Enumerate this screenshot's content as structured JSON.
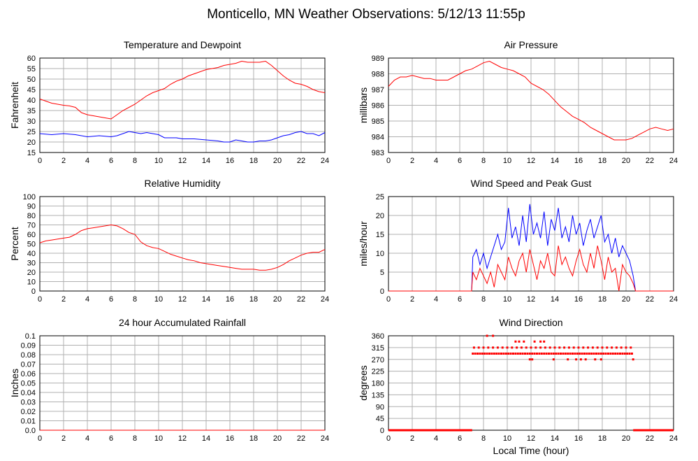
{
  "page": {
    "title": "Monticello, MN Weather Observations: 5/12/13 11:55p",
    "xlabel": "Local Time (hour)"
  },
  "colors": {
    "primary": "#ff0000",
    "secondary": "#0000ff",
    "grid": "#b0b0b0",
    "axis": "#000000"
  },
  "chart_data": [
    {
      "id": "temp",
      "type": "line",
      "title": "Temperature and Dewpoint",
      "ylabel": "Fahrenheit",
      "xlim": [
        0,
        24
      ],
      "ylim": [
        15,
        60
      ],
      "x_ticks": [
        0,
        2,
        4,
        6,
        8,
        10,
        12,
        14,
        16,
        18,
        20,
        22,
        24
      ],
      "y_ticks": [
        15,
        20,
        25,
        30,
        35,
        40,
        45,
        50,
        55,
        60
      ],
      "y_tick_labels": [
        "15",
        "20",
        "25",
        "30",
        "35",
        "40",
        "45",
        "50",
        "55",
        "60"
      ],
      "grid": true,
      "series": [
        {
          "color": "#ff0000",
          "x": [
            0,
            0.5,
            1,
            1.5,
            2,
            2.5,
            3,
            3.5,
            4,
            4.5,
            5,
            5.5,
            6,
            6.5,
            7,
            7.5,
            8,
            8.5,
            9,
            9.5,
            10,
            10.5,
            11,
            11.5,
            12,
            12.5,
            13,
            13.5,
            14,
            14.5,
            15,
            15.5,
            16,
            16.5,
            17,
            17.5,
            18,
            18.5,
            19,
            19.5,
            20,
            20.5,
            21,
            21.5,
            22,
            22.5,
            23,
            23.5,
            24
          ],
          "values": [
            40.5,
            39.5,
            38.5,
            38,
            37.5,
            37.2,
            36.5,
            34,
            33,
            32.5,
            32,
            31.5,
            31,
            33,
            35,
            36.5,
            38,
            40,
            42,
            43.5,
            44.5,
            45.5,
            47.5,
            49,
            50,
            51.5,
            52.5,
            53.5,
            54.5,
            55,
            55.5,
            56.5,
            57,
            57.5,
            58.5,
            58,
            58,
            58,
            58.5,
            56.5,
            54,
            51.5,
            49.5,
            48,
            47.5,
            46.5,
            45,
            44,
            43.5
          ]
        },
        {
          "color": "#0000ff",
          "x": [
            0,
            1,
            2,
            3,
            4,
            5,
            6,
            6.5,
            7,
            7.5,
            8,
            8.5,
            9,
            9.5,
            10,
            10.5,
            11,
            11.5,
            12,
            13,
            14,
            15,
            15.5,
            16,
            16.5,
            17,
            17.5,
            18,
            18.5,
            19,
            19.5,
            20,
            20.5,
            21,
            21.5,
            22,
            22.5,
            23,
            23.5,
            24
          ],
          "values": [
            24,
            23.5,
            24,
            23.5,
            22.5,
            23,
            22.5,
            23,
            24,
            25,
            24.5,
            24,
            24.5,
            24,
            23.5,
            22,
            22,
            22,
            21.5,
            21.5,
            21,
            20.5,
            20,
            20,
            21,
            20.5,
            20,
            20,
            20.5,
            20.5,
            21,
            22,
            23,
            23.5,
            24.5,
            25,
            24,
            24,
            23,
            24.5
          ]
        }
      ]
    },
    {
      "id": "pressure",
      "type": "line",
      "title": "Air Pressure",
      "ylabel": "millibars",
      "xlim": [
        0,
        24
      ],
      "ylim": [
        983,
        989
      ],
      "x_ticks": [
        0,
        2,
        4,
        6,
        8,
        10,
        12,
        14,
        16,
        18,
        20,
        22,
        24
      ],
      "y_ticks": [
        983,
        984,
        985,
        986,
        987,
        988,
        989
      ],
      "y_tick_labels": [
        "983",
        "984",
        "985",
        "986",
        "987",
        "988",
        "989"
      ],
      "grid": true,
      "series": [
        {
          "color": "#ff0000",
          "x": [
            0,
            0.5,
            1,
            1.5,
            2,
            2.5,
            3,
            3.5,
            4,
            4.5,
            5,
            5.5,
            6,
            6.5,
            7,
            7.5,
            8,
            8.5,
            9,
            9.5,
            10,
            10.5,
            11,
            11.5,
            12,
            12.5,
            13,
            13.5,
            14,
            14.5,
            15,
            15.5,
            16,
            16.5,
            17,
            17.5,
            18,
            18.5,
            19,
            19.5,
            20,
            20.5,
            21,
            21.5,
            22,
            22.5,
            23,
            23.5,
            24
          ],
          "values": [
            987.2,
            987.6,
            987.8,
            987.8,
            987.9,
            987.8,
            987.7,
            987.7,
            987.6,
            987.6,
            987.6,
            987.8,
            988.0,
            988.2,
            988.3,
            988.5,
            988.7,
            988.8,
            988.6,
            988.4,
            988.3,
            988.2,
            988.0,
            987.8,
            987.4,
            987.2,
            987.0,
            986.7,
            986.3,
            985.9,
            985.6,
            985.3,
            985.1,
            984.9,
            984.6,
            984.4,
            984.2,
            984.0,
            983.8,
            983.8,
            983.8,
            983.9,
            984.1,
            984.3,
            984.5,
            984.6,
            984.5,
            984.4,
            984.5
          ]
        }
      ]
    },
    {
      "id": "humidity",
      "type": "line",
      "title": "Relative Humidity",
      "ylabel": "Percent",
      "xlim": [
        0,
        24
      ],
      "ylim": [
        0,
        100
      ],
      "x_ticks": [
        0,
        2,
        4,
        6,
        8,
        10,
        12,
        14,
        16,
        18,
        20,
        22,
        24
      ],
      "y_ticks": [
        0,
        10,
        20,
        30,
        40,
        50,
        60,
        70,
        80,
        90,
        100
      ],
      "y_tick_labels": [
        "0",
        "10",
        "20",
        "30",
        "40",
        "50",
        "60",
        "70",
        "80",
        "90",
        "100"
      ],
      "grid": true,
      "series": [
        {
          "color": "#ff0000",
          "x": [
            0,
            0.5,
            1,
            1.5,
            2,
            2.5,
            3,
            3.5,
            4,
            4.5,
            5,
            5.5,
            6,
            6.5,
            7,
            7.5,
            8,
            8.5,
            9,
            9.5,
            10,
            10.5,
            11,
            11.5,
            12,
            12.5,
            13,
            13.5,
            14,
            14.5,
            15,
            15.5,
            16,
            16.5,
            17,
            17.5,
            18,
            18.5,
            19,
            19.5,
            20,
            20.5,
            21,
            21.5,
            22,
            22.5,
            23,
            23.5,
            24
          ],
          "values": [
            51,
            53,
            54,
            55,
            56,
            57,
            60,
            64,
            66,
            67,
            68,
            69,
            70,
            69,
            66,
            62,
            60,
            52,
            48,
            46,
            45,
            42,
            39,
            37,
            35,
            33,
            32,
            30,
            29,
            28,
            27,
            26,
            25,
            24,
            23,
            23,
            23,
            22,
            22,
            23,
            25,
            28,
            32,
            35,
            38,
            40,
            41,
            41,
            44
          ]
        }
      ]
    },
    {
      "id": "wind",
      "type": "line",
      "title": "Wind Speed and Peak Gust",
      "ylabel": "miles/hour",
      "xlim": [
        0,
        24
      ],
      "ylim": [
        0,
        25
      ],
      "x_ticks": [
        0,
        2,
        4,
        6,
        8,
        10,
        12,
        14,
        16,
        18,
        20,
        22,
        24
      ],
      "y_ticks": [
        0,
        5,
        10,
        15,
        20,
        25
      ],
      "y_tick_labels": [
        "0",
        "5",
        "10",
        "15",
        "20",
        "25"
      ],
      "grid": true,
      "series": [
        {
          "color": "#0000ff",
          "x": [
            0,
            7.0,
            7.1,
            7.4,
            7.7,
            8.0,
            8.3,
            8.6,
            8.9,
            9.2,
            9.5,
            9.8,
            10.1,
            10.4,
            10.7,
            11.0,
            11.3,
            11.6,
            11.9,
            12.2,
            12.5,
            12.8,
            13.1,
            13.4,
            13.7,
            14.0,
            14.3,
            14.6,
            14.9,
            15.2,
            15.5,
            15.8,
            16.1,
            16.4,
            16.7,
            17.0,
            17.3,
            17.6,
            17.9,
            18.2,
            18.5,
            18.8,
            19.1,
            19.4,
            19.7,
            20.0,
            20.3,
            20.6,
            20.8,
            24
          ],
          "values": [
            0,
            0,
            9,
            11,
            7,
            10,
            6,
            9,
            12,
            15,
            11,
            13,
            22,
            14,
            17,
            12,
            20,
            13,
            23,
            15,
            18,
            14,
            21,
            12,
            19,
            16,
            22,
            14,
            17,
            13,
            20,
            15,
            18,
            12,
            16,
            19,
            14,
            17,
            20,
            13,
            15,
            10,
            14,
            9,
            12,
            10,
            8,
            4,
            0,
            0
          ]
        },
        {
          "color": "#ff0000",
          "x": [
            0,
            7.0,
            7.1,
            7.4,
            7.7,
            8.0,
            8.3,
            8.6,
            8.9,
            9.2,
            9.5,
            9.8,
            10.1,
            10.4,
            10.7,
            11.0,
            11.3,
            11.6,
            11.9,
            12.2,
            12.5,
            12.8,
            13.1,
            13.4,
            13.7,
            14.0,
            14.3,
            14.6,
            14.9,
            15.2,
            15.5,
            15.8,
            16.1,
            16.4,
            16.7,
            17.0,
            17.3,
            17.6,
            17.9,
            18.2,
            18.5,
            18.8,
            19.1,
            19.4,
            19.7,
            20.0,
            20.3,
            20.6,
            20.8,
            24
          ],
          "values": [
            0,
            0,
            5,
            3,
            6,
            4,
            2,
            5,
            1,
            7,
            5,
            3,
            9,
            6,
            4,
            8,
            10,
            5,
            11,
            7,
            3,
            8,
            6,
            10,
            5,
            4,
            12,
            7,
            9,
            6,
            4,
            8,
            11,
            7,
            5,
            10,
            6,
            12,
            8,
            3,
            9,
            5,
            6,
            0,
            7,
            5,
            4,
            2,
            0,
            0
          ]
        }
      ]
    },
    {
      "id": "rain",
      "type": "line",
      "title": "24 hour Accumulated Rainfall",
      "ylabel": "Inches",
      "xlim": [
        0,
        24
      ],
      "ylim": [
        0,
        0.1
      ],
      "x_ticks": [
        0,
        2,
        4,
        6,
        8,
        10,
        12,
        14,
        16,
        18,
        20,
        22,
        24
      ],
      "y_ticks": [
        0,
        0.01,
        0.02,
        0.03,
        0.04,
        0.05,
        0.06,
        0.07,
        0.08,
        0.09,
        0.1
      ],
      "y_tick_labels": [
        "0.0",
        "0.01",
        "0.02",
        "0.03",
        "0.04",
        "0.05",
        "0.06",
        "0.07",
        "0.08",
        "0.09",
        "0.1"
      ],
      "grid": true,
      "series": [
        {
          "color": "#ff0000",
          "x": [
            0,
            24
          ],
          "values": [
            0,
            0
          ]
        }
      ]
    },
    {
      "id": "direction",
      "type": "scatter",
      "title": "Wind Direction",
      "ylabel": "degrees",
      "xlim": [
        0,
        24
      ],
      "ylim": [
        0,
        360
      ],
      "x_ticks": [
        0,
        2,
        4,
        6,
        8,
        10,
        12,
        14,
        16,
        18,
        20,
        22,
        24
      ],
      "y_ticks": [
        0,
        45,
        90,
        135,
        180,
        225,
        270,
        315,
        360
      ],
      "y_tick_labels": [
        "0",
        "45",
        "90",
        "135",
        "180",
        "225",
        "270",
        "315",
        "360"
      ],
      "grid": true,
      "series": [
        {
          "color": "#ff0000",
          "segments": [
            {
              "x": [
                0,
                7.05
              ],
              "value": 0
            },
            {
              "x": [
                20.6,
                24
              ],
              "value": 0
            }
          ],
          "x": [
            7.1,
            7.3,
            7.5,
            7.7,
            7.9,
            8.1,
            8.3,
            8.5,
            8.7,
            8.9,
            9.1,
            9.3,
            9.5,
            9.7,
            9.9,
            10.1,
            10.3,
            10.5,
            10.7,
            10.9,
            11.1,
            11.3,
            11.5,
            11.7,
            11.9,
            12.1,
            12.3,
            12.5,
            12.7,
            12.9,
            13.1,
            13.3,
            13.5,
            13.7,
            13.9,
            14.1,
            14.3,
            14.5,
            14.7,
            14.9,
            15.1,
            15.3,
            15.5,
            15.7,
            15.9,
            16.1,
            16.3,
            16.5,
            16.7,
            16.9,
            17.1,
            17.3,
            17.5,
            17.7,
            17.9,
            18.1,
            18.3,
            18.5,
            18.7,
            18.9,
            19.1,
            19.3,
            19.5,
            19.7,
            19.9,
            20.1,
            20.3,
            20.5,
            7.2,
            7.6,
            8.0,
            8.4,
            8.8,
            9.2,
            9.6,
            10.0,
            10.4,
            10.8,
            11.2,
            11.6,
            12.0,
            12.4,
            12.8,
            13.2,
            13.6,
            14.0,
            14.4,
            14.8,
            15.2,
            15.6,
            16.0,
            16.4,
            16.8,
            17.2,
            17.6,
            18.0,
            18.4,
            18.8,
            19.2,
            19.6,
            20.0,
            20.4,
            8.3,
            8.8,
            10.7,
            11.0,
            11.4,
            12.3,
            12.8,
            13.1,
            11.9,
            12.1,
            13.9,
            15.1,
            15.8,
            16.2,
            16.6,
            17.4,
            17.9,
            20.6
          ],
          "values": [
            292,
            292,
            292,
            292,
            292,
            292,
            292,
            292,
            292,
            292,
            292,
            292,
            292,
            292,
            292,
            292,
            292,
            292,
            292,
            292,
            292,
            292,
            292,
            292,
            292,
            292,
            292,
            292,
            292,
            292,
            292,
            292,
            292,
            292,
            292,
            292,
            292,
            292,
            292,
            292,
            292,
            292,
            292,
            292,
            292,
            292,
            292,
            292,
            292,
            292,
            292,
            292,
            292,
            292,
            292,
            292,
            292,
            292,
            292,
            292,
            292,
            292,
            292,
            292,
            292,
            292,
            292,
            292,
            315,
            315,
            315,
            315,
            315,
            315,
            315,
            315,
            315,
            315,
            315,
            315,
            315,
            315,
            315,
            315,
            315,
            315,
            315,
            315,
            315,
            315,
            315,
            315,
            315,
            315,
            315,
            315,
            315,
            315,
            315,
            315,
            315,
            315,
            360,
            360,
            338,
            338,
            338,
            338,
            338,
            338,
            270,
            270,
            270,
            270,
            270,
            270,
            270,
            270,
            270,
            270
          ]
        }
      ]
    }
  ]
}
